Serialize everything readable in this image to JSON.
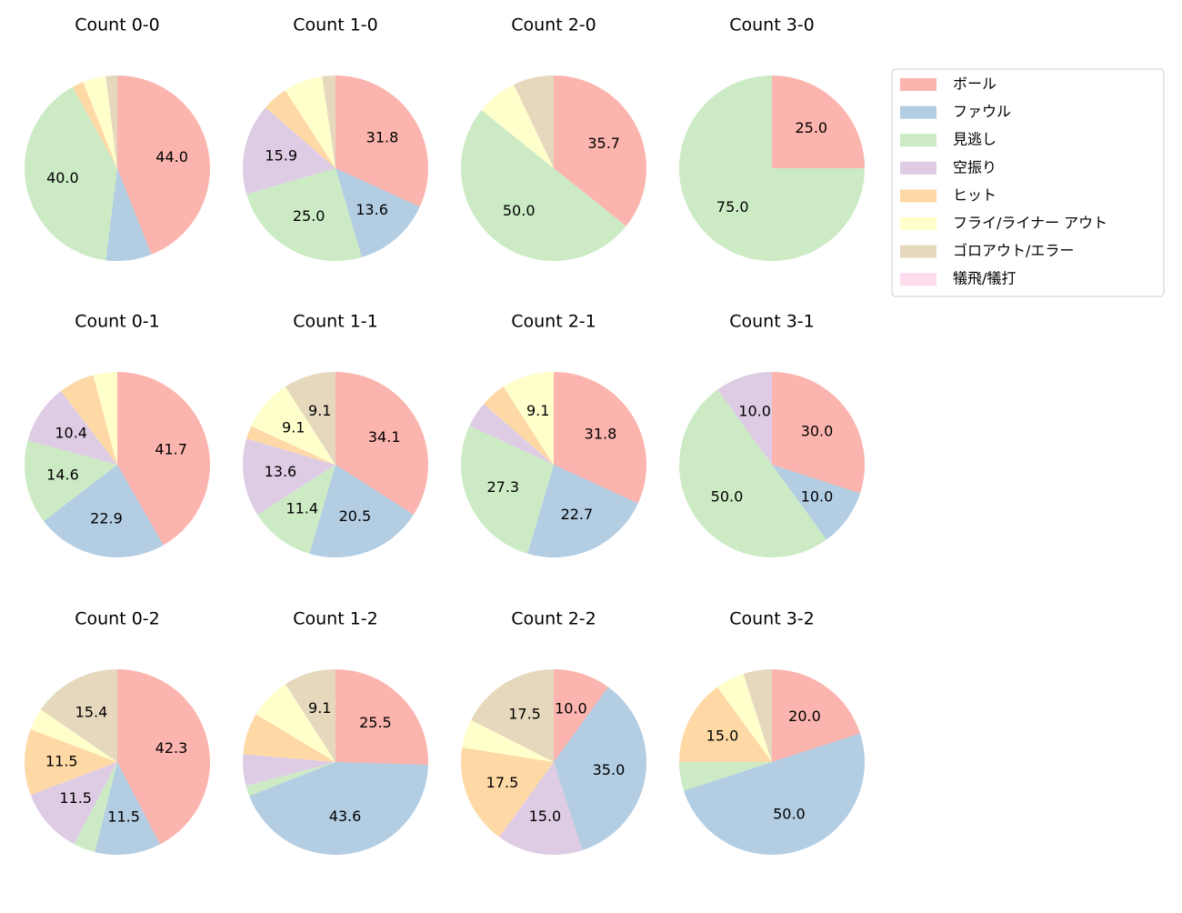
{
  "legend": {
    "categories": [
      "ボール",
      "ファウル",
      "見逃し",
      "空振り",
      "ヒット",
      "フライ/ライナー アウト",
      "ゴロアウト/エラー",
      "犠飛/犠打"
    ],
    "colors": [
      "#fbb4ae",
      "#b3cde3",
      "#ccebc5",
      "#decbe4",
      "#fed9a6",
      "#ffffcc",
      "#e5d8bd",
      "#fddaec"
    ],
    "position": "upper right"
  },
  "chart_data": [
    {
      "type": "pie",
      "title": "Count 0-0",
      "values": [
        44.0,
        8.0,
        40.0,
        0,
        2.0,
        4.0,
        2.0,
        0
      ],
      "value_labels": [
        "44.0",
        null,
        "40.0",
        null,
        null,
        null,
        null,
        null
      ]
    },
    {
      "type": "pie",
      "title": "Count 1-0",
      "values": [
        31.8,
        13.6,
        25.0,
        15.9,
        4.5,
        6.8,
        2.3,
        0
      ],
      "value_labels": [
        "31.8",
        "13.6",
        "25.0",
        "15.9",
        null,
        null,
        null,
        null
      ]
    },
    {
      "type": "pie",
      "title": "Count 2-0",
      "values": [
        35.7,
        0,
        50.0,
        0,
        0,
        7.1,
        7.1,
        0
      ],
      "value_labels": [
        "35.7",
        null,
        "50.0",
        null,
        null,
        null,
        null,
        null
      ]
    },
    {
      "type": "pie",
      "title": "Count 3-0",
      "values": [
        25.0,
        0,
        75.0,
        0,
        0,
        0,
        0,
        0
      ],
      "value_labels": [
        "25.0",
        null,
        "75.0",
        null,
        null,
        null,
        null,
        null
      ]
    },
    {
      "type": "pie",
      "title": "Count 0-1",
      "values": [
        41.7,
        22.9,
        14.6,
        10.4,
        6.2,
        4.2,
        0,
        0
      ],
      "value_labels": [
        "41.7",
        "22.9",
        "14.6",
        "10.4",
        null,
        null,
        null,
        null
      ]
    },
    {
      "type": "pie",
      "title": "Count 1-1",
      "values": [
        34.1,
        20.5,
        11.4,
        13.6,
        2.3,
        9.1,
        9.1,
        0
      ],
      "value_labels": [
        "34.1",
        "20.5",
        "11.4",
        "13.6",
        null,
        "9.1",
        "9.1",
        null
      ]
    },
    {
      "type": "pie",
      "title": "Count 2-1",
      "values": [
        31.8,
        22.7,
        27.3,
        4.5,
        4.5,
        9.1,
        0,
        0
      ],
      "value_labels": [
        "31.8",
        "22.7",
        "27.3",
        null,
        null,
        "9.1",
        null,
        null
      ]
    },
    {
      "type": "pie",
      "title": "Count 3-1",
      "values": [
        30.0,
        10.0,
        50.0,
        10.0,
        0,
        0,
        0,
        0
      ],
      "value_labels": [
        "30.0",
        "10.0",
        "50.0",
        "10.0",
        null,
        null,
        null,
        null
      ]
    },
    {
      "type": "pie",
      "title": "Count 0-2",
      "values": [
        42.3,
        11.5,
        3.8,
        11.5,
        11.5,
        3.8,
        15.4,
        0
      ],
      "value_labels": [
        "42.3",
        "11.5",
        null,
        "11.5",
        "11.5",
        null,
        "15.4",
        null
      ]
    },
    {
      "type": "pie",
      "title": "Count 1-2",
      "values": [
        25.5,
        43.6,
        1.8,
        5.5,
        7.3,
        7.3,
        9.1,
        0
      ],
      "value_labels": [
        "25.5",
        "43.6",
        null,
        null,
        null,
        null,
        "9.1",
        null
      ]
    },
    {
      "type": "pie",
      "title": "Count 2-2",
      "values": [
        10.0,
        35.0,
        0,
        15.0,
        17.5,
        5.0,
        17.5,
        0
      ],
      "value_labels": [
        "10.0",
        "35.0",
        null,
        "15.0",
        "17.5",
        null,
        "17.5",
        null
      ]
    },
    {
      "type": "pie",
      "title": "Count 3-2",
      "values": [
        20.0,
        50.0,
        5.0,
        0,
        15.0,
        5.0,
        5.0,
        0
      ],
      "value_labels": [
        "20.0",
        "50.0",
        null,
        null,
        "15.0",
        null,
        null,
        null
      ]
    }
  ]
}
